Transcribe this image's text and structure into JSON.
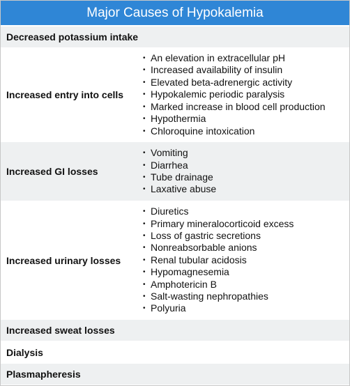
{
  "title": "Major Causes of Hypokalemia",
  "rows": [
    {
      "cause": "Decreased potassium intake",
      "items": []
    },
    {
      "cause": "Increased entry into cells",
      "items": [
        "An elevation in extracellular pH",
        "Increased availability of insulin",
        "Elevated beta-adrenergic activity",
        "Hypokalemic periodic paralysis",
        "Marked increase in blood cell production",
        "Hypothermia",
        "Chloroquine intoxication"
      ]
    },
    {
      "cause": "Increased GI losses",
      "items": [
        "Vomiting",
        "Diarrhea",
        "Tube drainage",
        "Laxative abuse"
      ]
    },
    {
      "cause": "Increased urinary losses",
      "items": [
        "Diuretics",
        "Primary mineralocorticoid excess",
        "Loss of gastric secretions",
        "Nonreabsorbable anions",
        "Renal tubular acidosis",
        "Hypomagnesemia",
        "Amphotericin B",
        "Salt-wasting nephropathies",
        "Polyuria"
      ]
    },
    {
      "cause": "Increased sweat losses",
      "items": []
    },
    {
      "cause": "Dialysis",
      "items": []
    },
    {
      "cause": "Plasmapheresis",
      "items": []
    }
  ],
  "colors": {
    "header": "#2f86d6",
    "shaded_row": "#eef0f1",
    "plain_row": "#ffffff"
  }
}
